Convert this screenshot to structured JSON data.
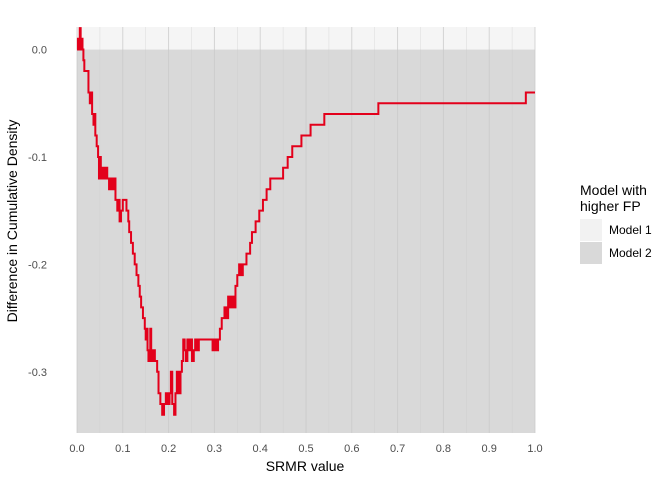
{
  "chart_data": {
    "type": "line",
    "xlabel": "SRMR value",
    "ylabel": "Difference in Cumulative Density",
    "xlim": [
      0,
      1
    ],
    "ylim": [
      -0.357,
      0.021
    ],
    "x_ticks": [
      0.0,
      0.1,
      0.2,
      0.3,
      0.4,
      0.5,
      0.6,
      0.7,
      0.8,
      0.9,
      1.0
    ],
    "x_tick_labels": [
      "0.0",
      "0.1",
      "0.2",
      "0.3",
      "0.4",
      "0.5",
      "0.6",
      "0.7",
      "0.8",
      "0.9",
      "1.0"
    ],
    "y_ticks": [
      0.0,
      -0.1,
      -0.2,
      -0.3
    ],
    "y_tick_labels": [
      "0.0",
      "-0.1",
      "-0.2",
      "-0.3"
    ],
    "grid": true,
    "legend": {
      "title": [
        "Model with",
        "higher FP"
      ],
      "placement": "right",
      "entries": [
        {
          "label": "Model 1",
          "color": "#f2f2f2"
        },
        {
          "label": "Model 2",
          "color": "#d9d9d9"
        }
      ]
    },
    "regions": [
      {
        "name": "Model 1",
        "y_from": 0.0,
        "y_to": 0.021,
        "color": "#f5f5f5"
      },
      {
        "name": "Model 2",
        "y_from": -0.357,
        "y_to": 0.0,
        "color": "#d9d9d9"
      }
    ],
    "series": [
      {
        "color": "#e3001b",
        "step": true,
        "points": [
          [
            0.0,
            0.0
          ],
          [
            0.002,
            0.01
          ],
          [
            0.004,
            0.0
          ],
          [
            0.006,
            0.02
          ],
          [
            0.008,
            0.0
          ],
          [
            0.01,
            0.01
          ],
          [
            0.012,
            0.0
          ],
          [
            0.014,
            -0.01
          ],
          [
            0.016,
            -0.02
          ],
          [
            0.025,
            -0.04
          ],
          [
            0.028,
            -0.05
          ],
          [
            0.03,
            -0.04
          ],
          [
            0.033,
            -0.06
          ],
          [
            0.036,
            -0.07
          ],
          [
            0.038,
            -0.06
          ],
          [
            0.04,
            -0.08
          ],
          [
            0.043,
            -0.09
          ],
          [
            0.046,
            -0.1
          ],
          [
            0.048,
            -0.12
          ],
          [
            0.05,
            -0.1
          ],
          [
            0.052,
            -0.12
          ],
          [
            0.055,
            -0.11
          ],
          [
            0.058,
            -0.12
          ],
          [
            0.062,
            -0.11
          ],
          [
            0.066,
            -0.12
          ],
          [
            0.07,
            -0.13
          ],
          [
            0.072,
            -0.12
          ],
          [
            0.076,
            -0.13
          ],
          [
            0.08,
            -0.12
          ],
          [
            0.084,
            -0.14
          ],
          [
            0.088,
            -0.15
          ],
          [
            0.09,
            -0.14
          ],
          [
            0.093,
            -0.16
          ],
          [
            0.096,
            -0.15
          ],
          [
            0.1,
            -0.14
          ],
          [
            0.108,
            -0.15
          ],
          [
            0.112,
            -0.16
          ],
          [
            0.114,
            -0.17
          ],
          [
            0.118,
            -0.18
          ],
          [
            0.122,
            -0.19
          ],
          [
            0.126,
            -0.2
          ],
          [
            0.13,
            -0.21
          ],
          [
            0.134,
            -0.22
          ],
          [
            0.137,
            -0.23
          ],
          [
            0.14,
            -0.24
          ],
          [
            0.144,
            -0.25
          ],
          [
            0.148,
            -0.26
          ],
          [
            0.15,
            -0.27
          ],
          [
            0.152,
            -0.26
          ],
          [
            0.154,
            -0.28
          ],
          [
            0.156,
            -0.29
          ],
          [
            0.158,
            -0.28
          ],
          [
            0.16,
            -0.26
          ],
          [
            0.162,
            -0.29
          ],
          [
            0.166,
            -0.28
          ],
          [
            0.17,
            -0.29
          ],
          [
            0.175,
            -0.3
          ],
          [
            0.178,
            -0.32
          ],
          [
            0.182,
            -0.33
          ],
          [
            0.186,
            -0.34
          ],
          [
            0.19,
            -0.33
          ],
          [
            0.194,
            -0.32
          ],
          [
            0.198,
            -0.33
          ],
          [
            0.202,
            -0.32
          ],
          [
            0.205,
            -0.3
          ],
          [
            0.208,
            -0.33
          ],
          [
            0.212,
            -0.34
          ],
          [
            0.215,
            -0.32
          ],
          [
            0.218,
            -0.3
          ],
          [
            0.222,
            -0.32
          ],
          [
            0.226,
            -0.3
          ],
          [
            0.229,
            -0.29
          ],
          [
            0.232,
            -0.27
          ],
          [
            0.235,
            -0.28
          ],
          [
            0.238,
            -0.29
          ],
          [
            0.241,
            -0.27
          ],
          [
            0.244,
            -0.28
          ],
          [
            0.247,
            -0.27
          ],
          [
            0.251,
            -0.29
          ],
          [
            0.255,
            -0.28
          ],
          [
            0.258,
            -0.27
          ],
          [
            0.262,
            -0.28
          ],
          [
            0.266,
            -0.27
          ],
          [
            0.296,
            -0.28
          ],
          [
            0.3,
            -0.27
          ],
          [
            0.304,
            -0.28
          ],
          [
            0.308,
            -0.27
          ],
          [
            0.312,
            -0.26
          ],
          [
            0.316,
            -0.25
          ],
          [
            0.322,
            -0.24
          ],
          [
            0.326,
            -0.25
          ],
          [
            0.33,
            -0.23
          ],
          [
            0.334,
            -0.24
          ],
          [
            0.338,
            -0.23
          ],
          [
            0.342,
            -0.24
          ],
          [
            0.346,
            -0.22
          ],
          [
            0.35,
            -0.21
          ],
          [
            0.354,
            -0.2
          ],
          [
            0.358,
            -0.21
          ],
          [
            0.362,
            -0.2
          ],
          [
            0.37,
            -0.19
          ],
          [
            0.378,
            -0.18
          ],
          [
            0.382,
            -0.17
          ],
          [
            0.39,
            -0.16
          ],
          [
            0.398,
            -0.15
          ],
          [
            0.406,
            -0.14
          ],
          [
            0.414,
            -0.13
          ],
          [
            0.422,
            -0.12
          ],
          [
            0.45,
            -0.11
          ],
          [
            0.46,
            -0.1
          ],
          [
            0.47,
            -0.09
          ],
          [
            0.49,
            -0.08
          ],
          [
            0.5,
            -0.08
          ],
          [
            0.51,
            -0.07
          ],
          [
            0.54,
            -0.06
          ],
          [
            0.658,
            -0.05
          ],
          [
            0.98,
            -0.04
          ],
          [
            1.0,
            -0.04
          ]
        ]
      }
    ]
  }
}
